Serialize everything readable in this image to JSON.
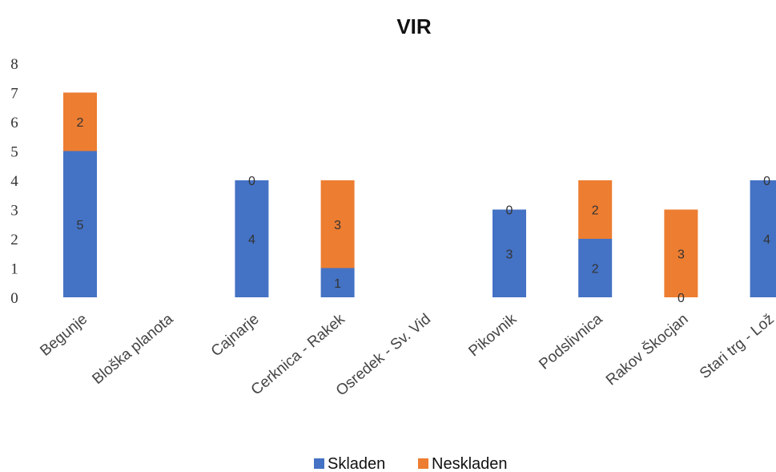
{
  "chart_data": {
    "type": "bar",
    "stacked": true,
    "title": "VIR",
    "categories": [
      "Begunje",
      "Bloška planota",
      "Cajnarje",
      "Cerknica - Rakek",
      "Osredek - Sv. Vid",
      "Pikovnik",
      "Podslivnica",
      "Rakov Škocjan",
      "Stari trg - Lož"
    ],
    "series": [
      {
        "name": "Skladen",
        "color": "#4472C4",
        "values": [
          5,
          null,
          4,
          1,
          null,
          3,
          2,
          0,
          4
        ]
      },
      {
        "name": "Neskladen",
        "color": "#ED7D31",
        "values": [
          2,
          null,
          0,
          3,
          null,
          0,
          2,
          3,
          0
        ]
      }
    ],
    "yticks": [
      "0",
      "1",
      "2",
      "3",
      "4",
      "5",
      "6",
      "7",
      "8"
    ],
    "ylim": [
      0,
      8
    ],
    "grid": false,
    "legend_position": "bottom"
  }
}
